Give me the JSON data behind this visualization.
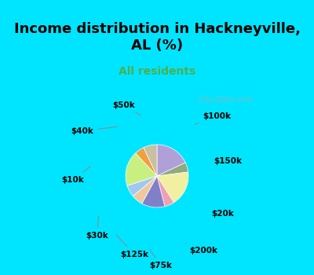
{
  "title": "Income distribution in Hackneyville,\nAL (%)",
  "subtitle": "All residents",
  "watermark": "City-Data.com",
  "slices": [
    {
      "label": "$100k",
      "value": 18,
      "color": "#b0a0d8"
    },
    {
      "label": "$150k",
      "value": 5,
      "color": "#8faa80"
    },
    {
      "label": "$20k",
      "value": 18,
      "color": "#f0f0a0"
    },
    {
      "label": "$200k",
      "value": 5,
      "color": "#f0a0b0"
    },
    {
      "label": "$75k",
      "value": 12,
      "color": "#8080c8"
    },
    {
      "label": "$125k",
      "value": 6,
      "color": "#f0c8a0"
    },
    {
      "label": "$30k",
      "value": 6,
      "color": "#a0c8f0"
    },
    {
      "label": "$10k",
      "value": 18,
      "color": "#c8f080"
    },
    {
      "label": "$40k",
      "value": 5,
      "color": "#f0a040"
    },
    {
      "label": "$50k",
      "value": 7,
      "color": "#c8c0a0"
    }
  ],
  "background_top": "#00e5ff",
  "background_chart": "#e8f5e0",
  "title_color": "#000000",
  "subtitle_color": "#4caf50",
  "label_color": "#000000",
  "figsize": [
    4.0,
    3.5
  ],
  "dpi": 100
}
